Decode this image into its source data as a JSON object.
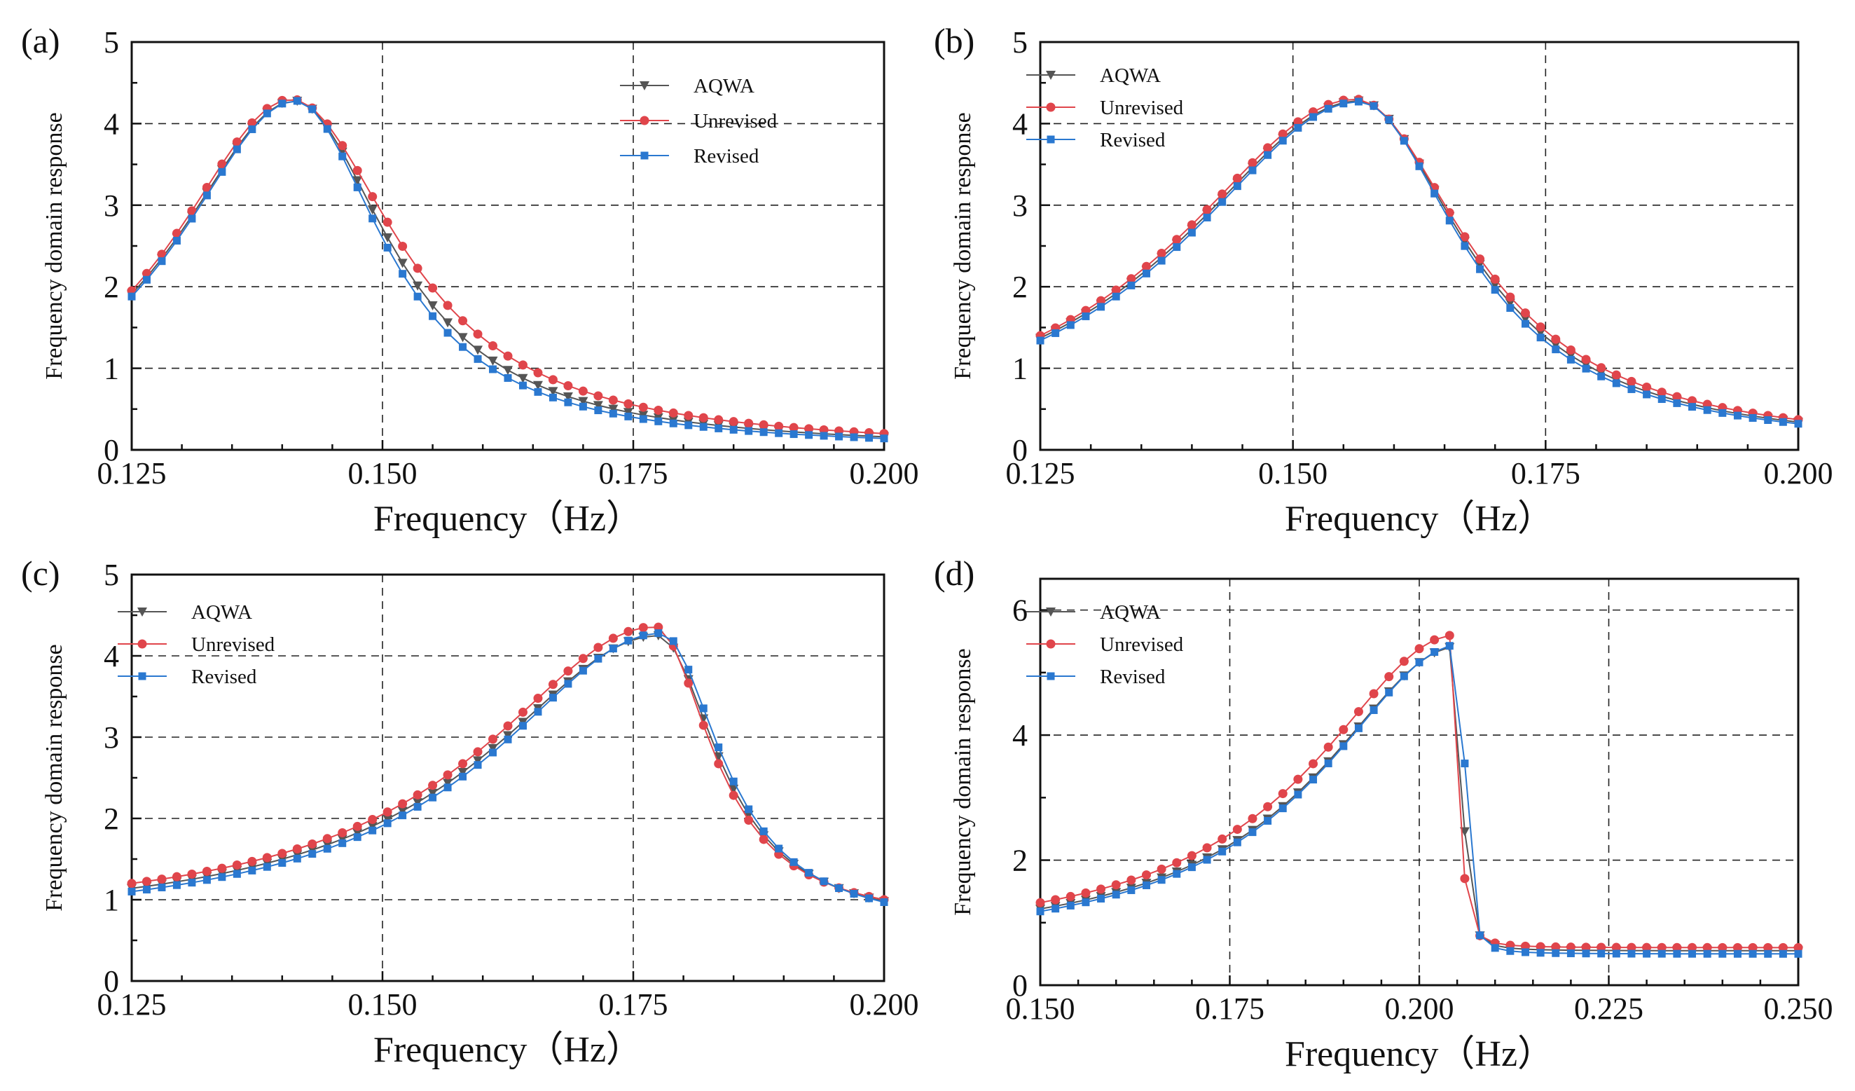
{
  "figure": {
    "background": "#ffffff"
  },
  "colors": {
    "AQWA": "#555555",
    "Unrevised": "#e0454b",
    "Revised": "#2a78d0"
  },
  "chart_data": [
    {
      "panel_label": "(a)",
      "type": "line",
      "xlabel": "Frequency（Hz）",
      "ylabel": "Frequency domain response",
      "xlim": [
        0.125,
        0.2
      ],
      "ylim": [
        0,
        5
      ],
      "xticks": [
        0.125,
        0.15,
        0.175,
        0.2
      ],
      "xtick_labels": [
        "0.125",
        "0.150",
        "0.175",
        "0.200"
      ],
      "yticks": [
        0,
        1,
        2,
        3,
        4,
        5
      ],
      "ytick_labels": [
        "0",
        "1",
        "2",
        "3",
        "4",
        "5"
      ],
      "grid": true,
      "legend_position": "top-right",
      "legend": [
        "AQWA",
        "Unrevised",
        "Revised"
      ],
      "model": {
        "peak_freq": [
          0.1412,
          0.1409,
          0.1413
        ],
        "peak_value": [
          4.28,
          4.3,
          4.28
        ],
        "baseline": [
          0.0,
          0.0,
          0.0
        ],
        "low_value": [
          1.91,
          1.95,
          1.88
        ],
        "high_value": [
          0.16,
          0.2,
          0.14
        ]
      }
    },
    {
      "panel_label": "(b)",
      "type": "line",
      "xlabel": "Frequency（Hz）",
      "ylabel": "Frequency domain response",
      "xlim": [
        0.125,
        0.2
      ],
      "ylim": [
        0,
        5
      ],
      "xticks": [
        0.125,
        0.15,
        0.175,
        0.2
      ],
      "xtick_labels": [
        "0.125",
        "0.150",
        "0.175",
        "0.200"
      ],
      "yticks": [
        0,
        1,
        2,
        3,
        4,
        5
      ],
      "ytick_labels": [
        "0",
        "1",
        "2",
        "3",
        "4",
        "5"
      ],
      "grid": true,
      "legend_position": "top-left",
      "legend": [
        "AQWA",
        "Unrevised",
        "Revised"
      ],
      "model": {
        "peak_freq": [
          0.1565,
          0.1562,
          0.1566
        ],
        "peak_value": [
          4.28,
          4.3,
          4.27
        ],
        "baseline": [
          0.0,
          0.0,
          0.0
        ],
        "low_value": [
          1.37,
          1.4,
          1.34
        ],
        "high_value": [
          0.34,
          0.37,
          0.32
        ]
      }
    },
    {
      "panel_label": "(c)",
      "type": "line",
      "xlabel": "Frequency（Hz）",
      "ylabel": "Frequency domain response",
      "xlim": [
        0.125,
        0.2
      ],
      "ylim": [
        0,
        5
      ],
      "xticks": [
        0.125,
        0.15,
        0.175,
        0.2
      ],
      "xtick_labels": [
        "0.125",
        "0.150",
        "0.175",
        "0.200"
      ],
      "yticks": [
        0,
        1,
        2,
        3,
        4,
        5
      ],
      "ytick_labels": [
        "0",
        "1",
        "2",
        "3",
        "4",
        "5"
      ],
      "grid": true,
      "legend_position": "top-left",
      "legend": [
        "AQWA",
        "Unrevised",
        "Revised"
      ],
      "model": {
        "peak_freq": [
          0.1775,
          0.1772,
          0.1778
        ],
        "peak_value": [
          4.25,
          4.36,
          4.28
        ],
        "baseline": [
          0.65,
          0.7,
          0.62
        ],
        "low_value": [
          1.14,
          1.2,
          1.1
        ],
        "high_value": [
          0.98,
          1.0,
          0.97
        ]
      }
    },
    {
      "panel_label": "(d)",
      "type": "line",
      "xlabel": "Frequency（Hz）",
      "ylabel": "Frequency domain response",
      "xlim": [
        0.15,
        0.25
      ],
      "ylim": [
        0,
        6.5
      ],
      "xticks": [
        0.15,
        0.175,
        0.2,
        0.225,
        0.25
      ],
      "xtick_labels": [
        "0.150",
        "0.175",
        "0.200",
        "0.225",
        "0.250"
      ],
      "yticks": [
        0,
        2,
        4,
        6
      ],
      "ytick_labels": [
        "0",
        "2",
        "4",
        "6"
      ],
      "grid": true,
      "legend_position": "top-left",
      "legend": [
        "AQWA",
        "Unrevised",
        "Revised"
      ],
      "model": {
        "peak_freq": [
          0.2052,
          0.2048,
          0.2055
        ],
        "peak_value": [
          5.42,
          5.6,
          5.45
        ],
        "baseline": [
          0.55,
          0.6,
          0.5
        ],
        "low_value": [
          1.22,
          1.32,
          1.18
        ],
        "high_value": [
          0.5,
          0.55,
          0.48
        ]
      }
    }
  ]
}
